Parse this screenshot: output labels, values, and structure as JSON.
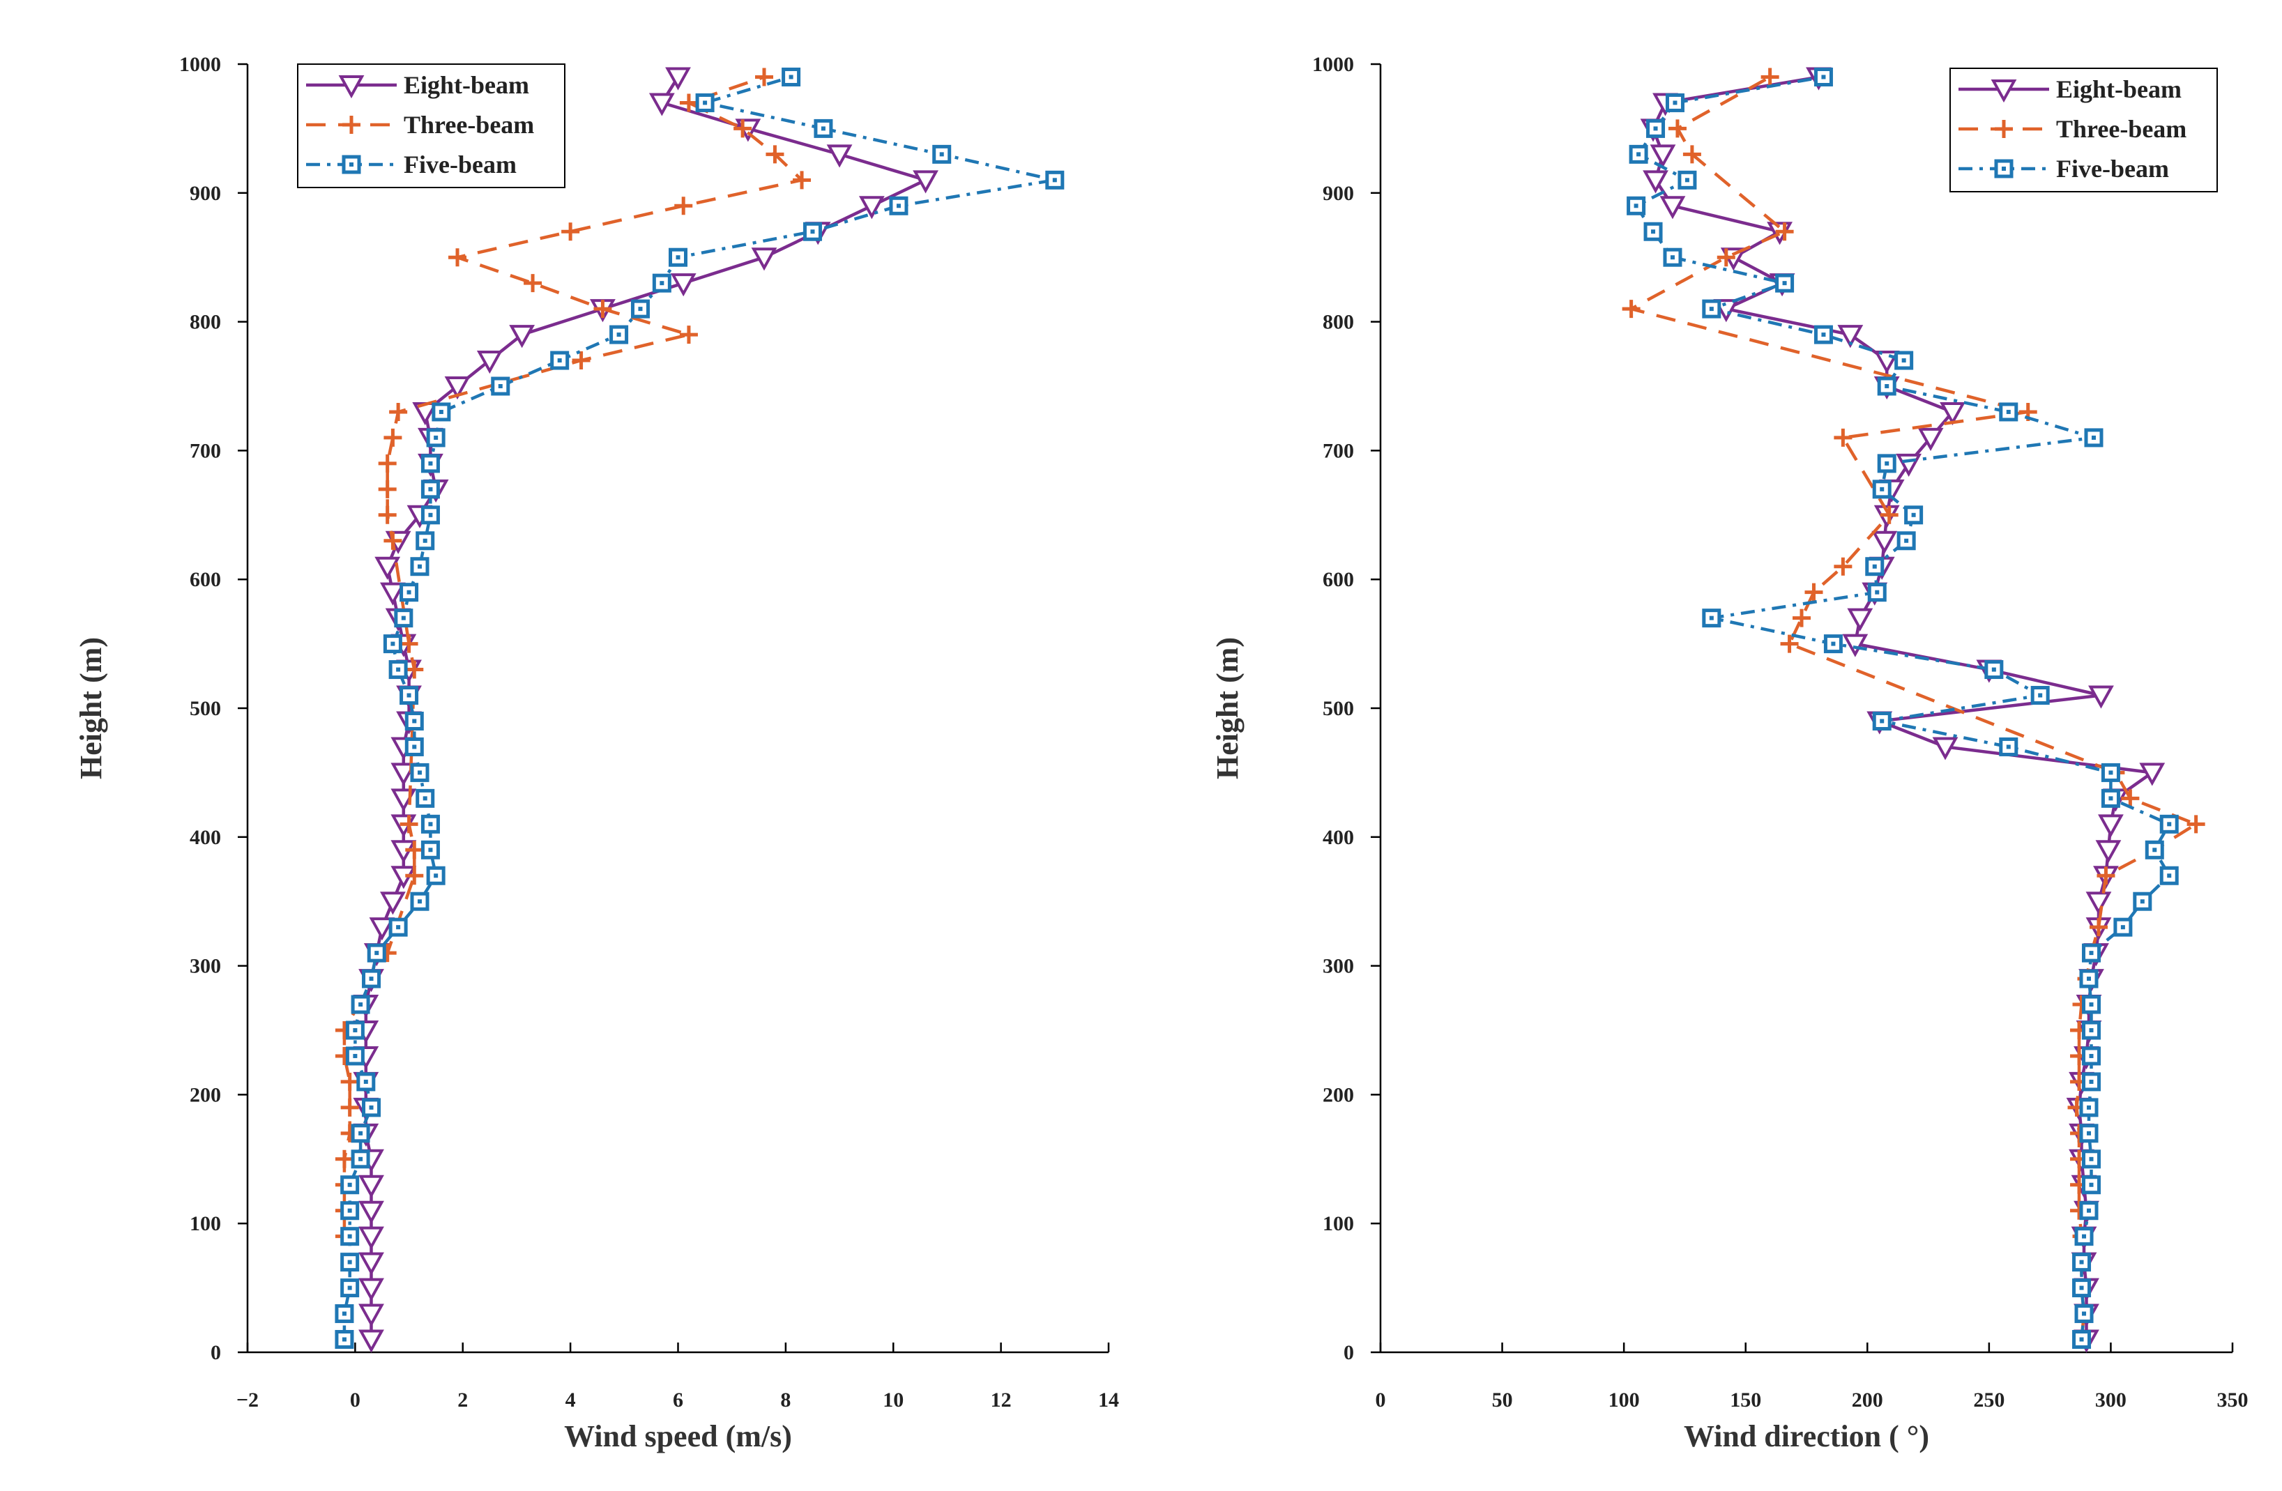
{
  "series_styles": [
    {
      "name": "Eight-beam",
      "color": "#7B2C8E",
      "dash": "",
      "marker": "triangle-down-icon"
    },
    {
      "name": "Three-beam",
      "color": "#E0622A",
      "dash": "28,18",
      "marker": "plus-icon"
    },
    {
      "name": "Five-beam",
      "color": "#1F77B4",
      "dash": "20,10,5,10",
      "marker": "square-dot-icon"
    }
  ],
  "chart_data": [
    {
      "type": "line",
      "title": "",
      "xlabel": "Wind speed (m/s)",
      "ylabel": "Height (m)",
      "xlim": [
        -2,
        14
      ],
      "ylim": [
        0,
        1000
      ],
      "xticks": [
        "−2",
        "0",
        "2",
        "4",
        "6",
        "8",
        "10",
        "12",
        "14"
      ],
      "yticks": [
        "0",
        "100",
        "200",
        "300",
        "400",
        "500",
        "600",
        "700",
        "800",
        "900",
        "1000"
      ],
      "grid": false,
      "legend_position": "top-left",
      "series": [
        {
          "name": "Eight-beam",
          "points": [
            [
              0.3,
              10
            ],
            [
              0.3,
              30
            ],
            [
              0.3,
              50
            ],
            [
              0.3,
              70
            ],
            [
              0.3,
              90
            ],
            [
              0.3,
              110
            ],
            [
              0.3,
              130
            ],
            [
              0.3,
              150
            ],
            [
              0.2,
              170
            ],
            [
              0.2,
              190
            ],
            [
              0.2,
              210
            ],
            [
              0.2,
              230
            ],
            [
              0.2,
              250
            ],
            [
              0.2,
              270
            ],
            [
              0.3,
              290
            ],
            [
              0.4,
              310
            ],
            [
              0.5,
              330
            ],
            [
              0.7,
              350
            ],
            [
              0.9,
              370
            ],
            [
              0.9,
              390
            ],
            [
              0.9,
              410
            ],
            [
              0.9,
              430
            ],
            [
              0.9,
              450
            ],
            [
              0.9,
              470
            ],
            [
              1.0,
              490
            ],
            [
              1.0,
              510
            ],
            [
              1.0,
              530
            ],
            [
              0.9,
              550
            ],
            [
              0.8,
              570
            ],
            [
              0.7,
              590
            ],
            [
              0.6,
              610
            ],
            [
              0.8,
              630
            ],
            [
              1.2,
              650
            ],
            [
              1.5,
              670
            ],
            [
              1.4,
              690
            ],
            [
              1.4,
              710
            ],
            [
              1.3,
              730
            ],
            [
              1.9,
              750
            ],
            [
              2.5,
              770
            ],
            [
              3.1,
              790
            ],
            [
              4.6,
              810
            ],
            [
              6.1,
              830
            ],
            [
              7.6,
              850
            ],
            [
              8.6,
              870
            ],
            [
              9.6,
              890
            ],
            [
              10.6,
              910
            ],
            [
              9.0,
              930
            ],
            [
              7.3,
              950
            ],
            [
              5.7,
              970
            ],
            [
              6.0,
              990
            ]
          ]
        },
        {
          "name": "Three-beam",
          "points": [
            [
              -0.2,
              90
            ],
            [
              -0.2,
              110
            ],
            [
              -0.2,
              130
            ],
            [
              -0.2,
              150
            ],
            [
              -0.1,
              170
            ],
            [
              -0.1,
              190
            ],
            [
              -0.1,
              210
            ],
            [
              -0.2,
              230
            ],
            [
              -0.2,
              250
            ],
            [
              0.6,
              310
            ],
            [
              1.1,
              370
            ],
            [
              1.1,
              390
            ],
            [
              1.0,
              410
            ],
            [
              1.1,
              530
            ],
            [
              1.0,
              550
            ],
            [
              0.7,
              630
            ],
            [
              0.6,
              650
            ],
            [
              0.6,
              670
            ],
            [
              0.6,
              690
            ],
            [
              0.7,
              710
            ],
            [
              0.8,
              730
            ],
            [
              4.2,
              770
            ],
            [
              6.2,
              790
            ],
            [
              4.6,
              810
            ],
            [
              3.3,
              830
            ],
            [
              1.9,
              850
            ],
            [
              4.0,
              870
            ],
            [
              6.1,
              890
            ],
            [
              8.3,
              910
            ],
            [
              7.8,
              930
            ],
            [
              7.2,
              950
            ],
            [
              6.2,
              970
            ],
            [
              7.6,
              990
            ]
          ]
        },
        {
          "name": "Five-beam",
          "points": [
            [
              -0.2,
              10
            ],
            [
              -0.2,
              30
            ],
            [
              -0.1,
              50
            ],
            [
              -0.1,
              70
            ],
            [
              -0.1,
              90
            ],
            [
              -0.1,
              110
            ],
            [
              -0.1,
              130
            ],
            [
              0.1,
              150
            ],
            [
              0.1,
              170
            ],
            [
              0.3,
              190
            ],
            [
              0.2,
              210
            ],
            [
              0.0,
              230
            ],
            [
              0.0,
              250
            ],
            [
              0.1,
              270
            ],
            [
              0.3,
              290
            ],
            [
              0.4,
              310
            ],
            [
              0.8,
              330
            ],
            [
              1.2,
              350
            ],
            [
              1.5,
              370
            ],
            [
              1.4,
              390
            ],
            [
              1.4,
              410
            ],
            [
              1.3,
              430
            ],
            [
              1.2,
              450
            ],
            [
              1.1,
              470
            ],
            [
              1.1,
              490
            ],
            [
              1.0,
              510
            ],
            [
              0.8,
              530
            ],
            [
              0.7,
              550
            ],
            [
              0.9,
              570
            ],
            [
              1.0,
              590
            ],
            [
              1.2,
              610
            ],
            [
              1.3,
              630
            ],
            [
              1.4,
              650
            ],
            [
              1.4,
              670
            ],
            [
              1.4,
              690
            ],
            [
              1.5,
              710
            ],
            [
              1.6,
              730
            ],
            [
              2.7,
              750
            ],
            [
              3.8,
              770
            ],
            [
              4.9,
              790
            ],
            [
              5.3,
              810
            ],
            [
              5.7,
              830
            ],
            [
              6.0,
              850
            ],
            [
              8.5,
              870
            ],
            [
              10.1,
              890
            ],
            [
              13.0,
              910
            ],
            [
              10.9,
              930
            ],
            [
              8.7,
              950
            ],
            [
              6.5,
              970
            ],
            [
              8.1,
              990
            ]
          ]
        }
      ]
    },
    {
      "type": "line",
      "title": "",
      "xlabel": "Wind direction ( °)",
      "ylabel": "Height (m)",
      "xlim": [
        0,
        350
      ],
      "ylim": [
        0,
        1000
      ],
      "xticks": [
        "0",
        "50",
        "100",
        "150",
        "200",
        "250",
        "300",
        "350"
      ],
      "yticks": [
        "0",
        "100",
        "200",
        "300",
        "400",
        "500",
        "600",
        "700",
        "800",
        "900",
        "1000"
      ],
      "grid": false,
      "legend_position": "top-right",
      "series": [
        {
          "name": "Eight-beam",
          "points": [
            [
              290,
              10
            ],
            [
              290,
              30
            ],
            [
              290,
              50
            ],
            [
              289,
              70
            ],
            [
              289,
              90
            ],
            [
              290,
              110
            ],
            [
              289,
              130
            ],
            [
              288,
              150
            ],
            [
              288,
              170
            ],
            [
              287,
              190
            ],
            [
              288,
              210
            ],
            [
              290,
              230
            ],
            [
              291,
              250
            ],
            [
              291,
              270
            ],
            [
              292,
              290
            ],
            [
              294,
              310
            ],
            [
              295,
              330
            ],
            [
              295,
              350
            ],
            [
              298,
              370
            ],
            [
              299,
              390
            ],
            [
              300,
              410
            ],
            [
              302,
              430
            ],
            [
              317,
              450
            ],
            [
              232,
              470
            ],
            [
              205,
              490
            ],
            [
              296,
              510
            ],
            [
              250,
              530
            ],
            [
              195,
              550
            ],
            [
              197,
              570
            ],
            [
              203,
              590
            ],
            [
              206,
              610
            ],
            [
              207,
              630
            ],
            [
              208,
              650
            ],
            [
              210,
              670
            ],
            [
              217,
              690
            ],
            [
              226,
              710
            ],
            [
              235,
              730
            ],
            [
              208,
              750
            ],
            [
              208,
              770
            ],
            [
              193,
              790
            ],
            [
              142,
              810
            ],
            [
              165,
              830
            ],
            [
              145,
              850
            ],
            [
              164,
              870
            ],
            [
              120,
              890
            ],
            [
              113,
              910
            ],
            [
              116,
              930
            ],
            [
              112,
              950
            ],
            [
              117,
              970
            ],
            [
              180,
              990
            ]
          ]
        },
        {
          "name": "Three-beam",
          "points": [
            [
              288,
              10
            ],
            [
              289,
              30
            ],
            [
              288,
              50
            ],
            [
              288,
              70
            ],
            [
              288,
              90
            ],
            [
              287,
              110
            ],
            [
              287,
              130
            ],
            [
              287,
              150
            ],
            [
              287,
              170
            ],
            [
              286,
              190
            ],
            [
              287,
              210
            ],
            [
              287,
              230
            ],
            [
              287,
              250
            ],
            [
              288,
              270
            ],
            [
              290,
              290
            ],
            [
              292,
              310
            ],
            [
              295,
              330
            ],
            [
              298,
              370
            ],
            [
              318,
              390
            ],
            [
              335,
              410
            ],
            [
              308,
              430
            ],
            [
              302,
              450
            ],
            [
              168,
              550
            ],
            [
              173,
              570
            ],
            [
              178,
              590
            ],
            [
              190,
              610
            ],
            [
              209,
              650
            ],
            [
              190,
              710
            ],
            [
              266,
              730
            ],
            [
              103,
              810
            ],
            [
              142,
              850
            ],
            [
              166,
              870
            ],
            [
              128,
              930
            ],
            [
              122,
              950
            ],
            [
              160,
              990
            ]
          ]
        },
        {
          "name": "Five-beam",
          "points": [
            [
              288,
              10
            ],
            [
              289,
              30
            ],
            [
              288,
              50
            ],
            [
              288,
              70
            ],
            [
              289,
              90
            ],
            [
              291,
              110
            ],
            [
              292,
              130
            ],
            [
              292,
              150
            ],
            [
              291,
              170
            ],
            [
              291,
              190
            ],
            [
              292,
              210
            ],
            [
              292,
              230
            ],
            [
              292,
              250
            ],
            [
              292,
              270
            ],
            [
              291,
              290
            ],
            [
              292,
              310
            ],
            [
              305,
              330
            ],
            [
              313,
              350
            ],
            [
              324,
              370
            ],
            [
              318,
              390
            ],
            [
              324,
              410
            ],
            [
              300,
              430
            ],
            [
              300,
              450
            ],
            [
              258,
              470
            ],
            [
              206,
              490
            ],
            [
              271,
              510
            ],
            [
              252,
              530
            ],
            [
              186,
              550
            ],
            [
              136,
              570
            ],
            [
              204,
              590
            ],
            [
              203,
              610
            ],
            [
              216,
              630
            ],
            [
              219,
              650
            ],
            [
              206,
              670
            ],
            [
              208,
              690
            ],
            [
              293,
              710
            ],
            [
              258,
              730
            ],
            [
              208,
              750
            ],
            [
              215,
              770
            ],
            [
              182,
              790
            ],
            [
              136,
              810
            ],
            [
              166,
              830
            ],
            [
              120,
              850
            ],
            [
              112,
              870
            ],
            [
              105,
              890
            ],
            [
              126,
              910
            ],
            [
              106,
              930
            ],
            [
              113,
              950
            ],
            [
              121,
              970
            ],
            [
              182,
              990
            ]
          ]
        }
      ]
    }
  ]
}
